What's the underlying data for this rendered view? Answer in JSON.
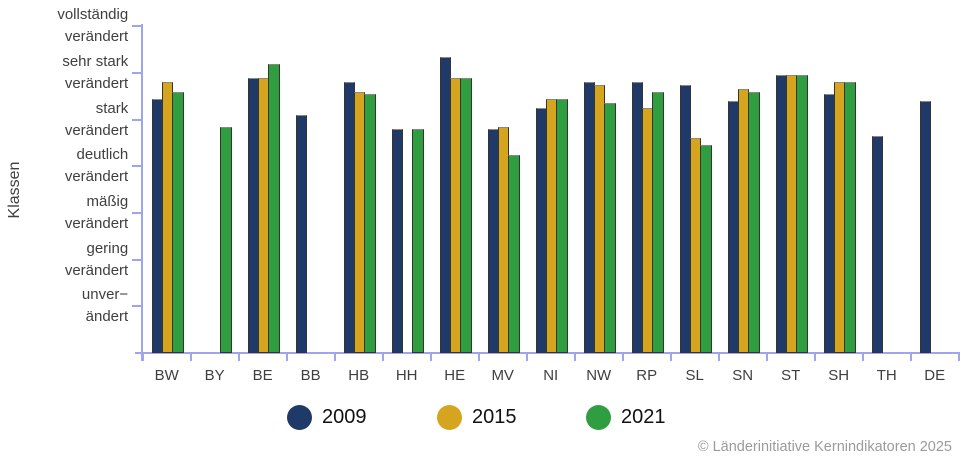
{
  "chart_data": {
    "type": "bar",
    "title": "",
    "xlabel": "",
    "ylabel": "Klassen",
    "grid": false,
    "legend_position": "bottom",
    "x_categories": [
      "BW",
      "BY",
      "BE",
      "BB",
      "HB",
      "HH",
      "HE",
      "MV",
      "NI",
      "NW",
      "RP",
      "SL",
      "SN",
      "ST",
      "SH",
      "TH",
      "DE"
    ],
    "y_axis": {
      "min": 0,
      "max": 7,
      "categories": [
        {
          "value": 7,
          "label": "vollständig\nverändert"
        },
        {
          "value": 6,
          "label": "sehr stark\nverändert"
        },
        {
          "value": 5,
          "label": "stark\nverändert"
        },
        {
          "value": 4,
          "label": "deutlich\nverändert"
        },
        {
          "value": 3,
          "label": "mäßig\nverändert"
        },
        {
          "value": 2,
          "label": "gering\nverändert"
        },
        {
          "value": 1,
          "label": "unver−\nändert"
        }
      ]
    },
    "series": [
      {
        "name": "2009",
        "color": "#1f3a68",
        "values": [
          5.45,
          null,
          5.9,
          5.1,
          5.8,
          4.8,
          6.35,
          4.8,
          5.25,
          5.8,
          5.8,
          5.75,
          5.4,
          5.95,
          5.55,
          4.65,
          5.4
        ]
      },
      {
        "name": "2015",
        "color": "#d6a51f",
        "values": [
          5.8,
          null,
          5.9,
          null,
          5.6,
          null,
          5.9,
          4.85,
          5.45,
          5.75,
          5.25,
          4.6,
          5.65,
          5.95,
          5.8,
          null,
          null
        ]
      },
      {
        "name": "2021",
        "color": "#2f9e41",
        "values": [
          5.6,
          4.85,
          6.2,
          null,
          5.55,
          4.8,
          5.9,
          4.25,
          5.45,
          5.35,
          5.6,
          4.45,
          5.6,
          5.95,
          5.8,
          null,
          null
        ]
      }
    ]
  },
  "footer": {
    "copyright": "© Länderinitiative Kernindikatoren 2025"
  },
  "colors": {
    "axis": "#a0a4ec",
    "bar_outline": "#35352f",
    "tick_label": "#3f3f3f",
    "legend_text": "#111111",
    "copyright": "#9b9b9b"
  }
}
